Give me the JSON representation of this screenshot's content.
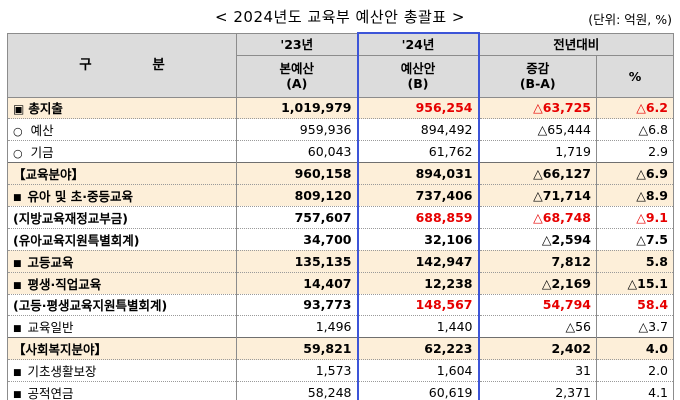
{
  "title": "< 2024년도 교육부 예산안 총괄표 >",
  "unit": "(단위: 억원, %)",
  "header": {
    "category": "구 분",
    "col_a_year": "'23년",
    "col_a_name": "본예산",
    "col_a_code": "(A)",
    "col_b_year": "'24년",
    "col_b_name": "예산안",
    "col_b_code": "(B)",
    "col_c_top": "전년대비",
    "col_c_name": "증감",
    "col_c_code": "(B-A)",
    "col_d_name": "%"
  },
  "rows": [
    {
      "label": "총지출",
      "marker": "▣",
      "a": "1,019,979",
      "b": "956,254",
      "diff": "△63,725",
      "pct": "△6.2"
    },
    {
      "label": "예산",
      "marker": "○",
      "a": "959,936",
      "b": "894,492",
      "diff": "△65,444",
      "pct": "△6.8"
    },
    {
      "label": "기금",
      "marker": "○",
      "a": "60,043",
      "b": "61,762",
      "diff": "1,719",
      "pct": "2.9"
    },
    {
      "label": "【교육분야】",
      "marker": "",
      "a": "960,158",
      "b": "894,031",
      "diff": "△66,127",
      "pct": "△6.9"
    },
    {
      "label": "유아 및 초·중등교육",
      "marker": "■",
      "a": "809,120",
      "b": "737,406",
      "diff": "△71,714",
      "pct": "△8.9"
    },
    {
      "label": "(지방교육재정교부금)",
      "marker": "",
      "a": "757,607",
      "b": "688,859",
      "diff": "△68,748",
      "pct": "△9.1"
    },
    {
      "label": "(유아교육지원특별회계)",
      "marker": "",
      "a": "34,700",
      "b": "32,106",
      "diff": "△2,594",
      "pct": "△7.5"
    },
    {
      "label": "고등교육",
      "marker": "■",
      "a": "135,135",
      "b": "142,947",
      "diff": "7,812",
      "pct": "5.8"
    },
    {
      "label": "평생·직업교육",
      "marker": "■",
      "a": "14,407",
      "b": "12,238",
      "diff": "△2,169",
      "pct": "△15.1"
    },
    {
      "label": "(고등·평생교육지원특별회계)",
      "marker": "",
      "a": "93,773",
      "b": "148,567",
      "diff": "54,794",
      "pct": "58.4"
    },
    {
      "label": "교육일반",
      "marker": "■",
      "a": "1,496",
      "b": "1,440",
      "diff": "△56",
      "pct": "△3.7"
    },
    {
      "label": "【사회복지분야】",
      "marker": "",
      "a": "59,821",
      "b": "62,223",
      "diff": "2,402",
      "pct": "4.0"
    },
    {
      "label": "기초생활보장",
      "marker": "■",
      "a": "1,573",
      "b": "1,604",
      "diff": "31",
      "pct": "2.0"
    },
    {
      "label": "공적연금",
      "marker": "■",
      "a": "58,248",
      "b": "60,619",
      "diff": "2,371",
      "pct": "4.1"
    }
  ],
  "colors": {
    "red": "#e60000",
    "highlight": "#fdefd9",
    "header": "#dcdcdc",
    "blue_frame": "#3d55d8"
  }
}
